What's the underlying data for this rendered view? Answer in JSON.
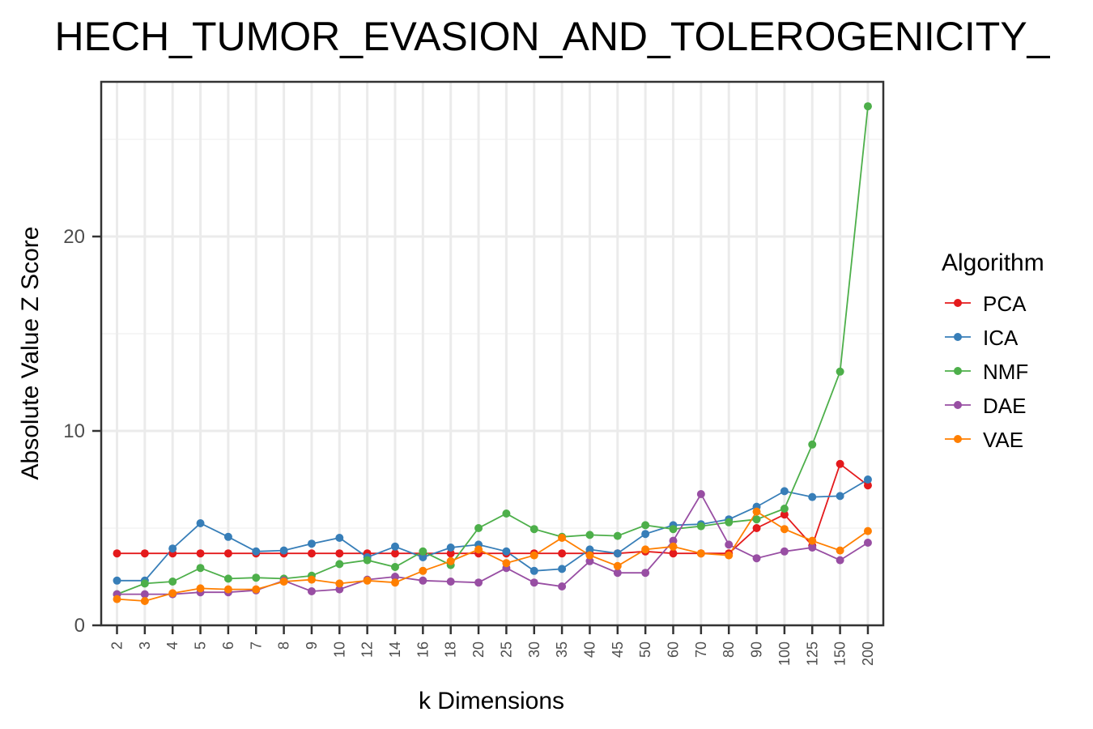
{
  "chart_data": {
    "type": "line",
    "title": "HECH_TUMOR_EVASION_AND_TOLEROGENICITY_",
    "xlabel": "k Dimensions",
    "ylabel": "Absolute Value Z Score",
    "categories": [
      "2",
      "3",
      "4",
      "5",
      "6",
      "7",
      "8",
      "9",
      "10",
      "12",
      "14",
      "16",
      "18",
      "20",
      "25",
      "30",
      "35",
      "40",
      "45",
      "50",
      "60",
      "70",
      "80",
      "90",
      "100",
      "125",
      "150",
      "200"
    ],
    "ylim": [
      0,
      27.5
    ],
    "yticks": [
      0,
      10,
      20
    ],
    "ytick_labels": [
      "0",
      "10",
      "20"
    ],
    "grid": true,
    "legend": {
      "title": "Algorithm",
      "placement": "right"
    },
    "series": [
      {
        "name": "PCA",
        "color": "#E41A1C",
        "values": [
          3.7,
          3.7,
          3.7,
          3.7,
          3.7,
          3.7,
          3.7,
          3.7,
          3.7,
          3.7,
          3.7,
          3.7,
          3.7,
          3.7,
          3.7,
          3.7,
          3.7,
          3.7,
          3.7,
          3.8,
          3.7,
          3.7,
          3.7,
          5.0,
          5.7,
          4.1,
          8.3,
          7.2
        ]
      },
      {
        "name": "ICA",
        "color": "#377EB8",
        "values": [
          2.3,
          2.3,
          3.95,
          5.25,
          4.55,
          3.8,
          3.85,
          4.2,
          4.5,
          3.5,
          4.05,
          3.5,
          4.0,
          4.15,
          3.8,
          2.8,
          2.9,
          3.9,
          3.7,
          4.7,
          5.15,
          5.2,
          5.45,
          6.1,
          6.9,
          6.6,
          6.65,
          7.5
        ]
      },
      {
        "name": "NMF",
        "color": "#4DAF4A",
        "values": [
          1.6,
          2.15,
          2.25,
          2.95,
          2.4,
          2.45,
          2.4,
          2.55,
          3.15,
          3.35,
          3.0,
          3.8,
          3.1,
          5.0,
          5.75,
          4.95,
          4.55,
          4.65,
          4.6,
          5.15,
          4.95,
          5.1,
          5.3,
          5.45,
          6.0,
          9.3,
          13.05,
          26.7
        ]
      },
      {
        "name": "DAE",
        "color": "#984EA3",
        "values": [
          1.6,
          1.6,
          1.6,
          1.7,
          1.7,
          1.8,
          2.3,
          1.75,
          1.85,
          2.35,
          2.5,
          2.3,
          2.25,
          2.2,
          2.95,
          2.2,
          2.0,
          3.3,
          2.7,
          2.7,
          4.35,
          6.75,
          4.15,
          3.45,
          3.8,
          4.0,
          3.35,
          4.25
        ]
      },
      {
        "name": "VAE",
        "color": "#FF7F00",
        "values": [
          1.35,
          1.25,
          1.65,
          1.9,
          1.85,
          1.85,
          2.25,
          2.35,
          2.15,
          2.3,
          2.2,
          2.8,
          3.3,
          3.9,
          3.2,
          3.6,
          4.5,
          3.6,
          3.05,
          3.9,
          4.05,
          3.7,
          3.6,
          5.85,
          4.95,
          4.35,
          3.85,
          4.85
        ]
      }
    ]
  }
}
